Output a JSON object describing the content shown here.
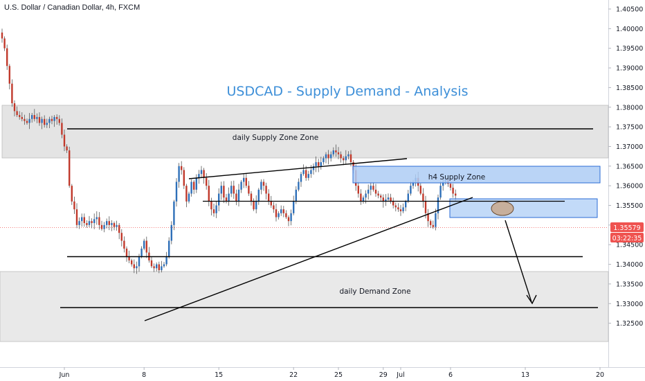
{
  "symbol_title": "U.S. Dollar / Canadian Dollar, 4h, FXCM",
  "colors": {
    "up": "#2e6fb8",
    "down": "#c0392b",
    "wick": "#555555",
    "zone_gray": "#e4e4e4",
    "zone_blue": "#aecdf5",
    "zone_blue_border": "#2a6bd6",
    "title": "#3d8fd8",
    "price_tag": "#ef5350",
    "ellipse": "#c8a07e"
  },
  "chart_data": {
    "type": "candlestick",
    "title": "USDCAD - Supply Demand - Analysis",
    "y_ticks": [
      "1.40500",
      "1.40000",
      "1.39500",
      "1.39000",
      "1.38500",
      "1.38000",
      "1.37500",
      "1.37000",
      "1.36500",
      "1.36000",
      "1.35500",
      "1.35000",
      "1.34500",
      "1.34000",
      "1.33500",
      "1.33000",
      "1.32500"
    ],
    "x_ticks": [
      {
        "label": "Jun",
        "bar": 25
      },
      {
        "label": "8",
        "bar": 57
      },
      {
        "label": "15",
        "bar": 87
      },
      {
        "label": "22",
        "bar": 117
      },
      {
        "label": "25",
        "bar": 135
      },
      {
        "label": "29",
        "bar": 153
      },
      {
        "label": "Jul",
        "bar": 160
      },
      {
        "label": "6",
        "bar": 180
      },
      {
        "label": "13",
        "bar": 210
      },
      {
        "label": "20",
        "bar": 240
      }
    ],
    "last_price": "1.35579",
    "countdown": "03:22:35",
    "ylim": [
      1.325,
      1.405
    ],
    "series": {
      "close": [
        1.3975,
        1.395,
        1.3905,
        1.386,
        1.381,
        1.379,
        1.378,
        1.3775,
        1.377,
        1.3765,
        1.376,
        1.377,
        1.378,
        1.377,
        1.3775,
        1.376,
        1.377,
        1.3755,
        1.376,
        1.377,
        1.3765,
        1.3775,
        1.377,
        1.376,
        1.373,
        1.37,
        1.369,
        1.36,
        1.356,
        1.354,
        1.35,
        1.351,
        1.352,
        1.3505,
        1.35,
        1.351,
        1.3505,
        1.3515,
        1.352,
        1.35,
        1.349,
        1.35,
        1.351,
        1.35,
        1.3505,
        1.3495,
        1.35,
        1.348,
        1.346,
        1.344,
        1.342,
        1.341,
        1.34,
        1.339,
        1.3395,
        1.342,
        1.344,
        1.346,
        1.343,
        1.341,
        1.3395,
        1.339,
        1.34,
        1.3385,
        1.3395,
        1.34,
        1.342,
        1.346,
        1.35,
        1.356,
        1.361,
        1.365,
        1.364,
        1.36,
        1.356,
        1.358,
        1.361,
        1.359,
        1.362,
        1.363,
        1.364,
        1.362,
        1.36,
        1.356,
        1.354,
        1.353,
        1.355,
        1.358,
        1.36,
        1.357,
        1.356,
        1.358,
        1.36,
        1.358,
        1.356,
        1.359,
        1.361,
        1.362,
        1.36,
        1.358,
        1.356,
        1.354,
        1.356,
        1.359,
        1.361,
        1.36,
        1.358,
        1.356,
        1.355,
        1.354,
        1.352,
        1.353,
        1.354,
        1.353,
        1.352,
        1.351,
        1.353,
        1.356,
        1.359,
        1.361,
        1.363,
        1.364,
        1.362,
        1.363,
        1.364,
        1.365,
        1.366,
        1.365,
        1.366,
        1.367,
        1.368,
        1.367,
        1.368,
        1.369,
        1.3685,
        1.368,
        1.367,
        1.3665,
        1.3675,
        1.368,
        1.366,
        1.364,
        1.36,
        1.358,
        1.356,
        1.357,
        1.358,
        1.359,
        1.36,
        1.359,
        1.358,
        1.3575,
        1.357,
        1.356,
        1.3565,
        1.357,
        1.356,
        1.355,
        1.3545,
        1.354,
        1.3535,
        1.3545,
        1.356,
        1.358,
        1.36,
        1.361,
        1.362,
        1.36,
        1.358,
        1.356,
        1.353,
        1.351,
        1.35,
        1.3495,
        1.353,
        1.357,
        1.36,
        1.361,
        1.3615,
        1.3605,
        1.3595,
        1.358,
        1.3575
      ]
    }
  },
  "annotations": {
    "daily_supply_label": "daily Supply Zone Zone",
    "daily_demand_label": "daily Demand Zone",
    "h4_supply_label": "h4 Supply Zone"
  }
}
